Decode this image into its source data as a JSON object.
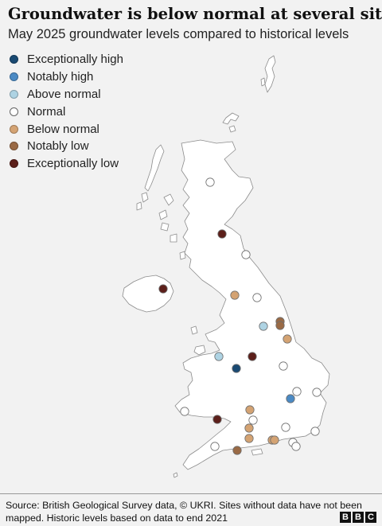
{
  "header": {
    "title": "Groundwater is below normal at several sites",
    "subtitle": "May 2025 groundwater levels compared to historical levels"
  },
  "legend": [
    {
      "label": "Exceptionally high",
      "color": "#1a4a73",
      "icon": "circle-marker"
    },
    {
      "label": "Notably high",
      "color": "#4b8ac4",
      "icon": "circle-marker"
    },
    {
      "label": "Above normal",
      "color": "#aed3e3",
      "icon": "circle-marker"
    },
    {
      "label": "Normal",
      "color": "#ffffff",
      "icon": "circle-marker"
    },
    {
      "label": "Below normal",
      "color": "#d4a373",
      "icon": "circle-marker"
    },
    {
      "label": "Notably low",
      "color": "#9a6a45",
      "icon": "circle-marker"
    },
    {
      "label": "Exceptionally low",
      "color": "#5c1f1a",
      "icon": "circle-marker"
    }
  ],
  "map": {
    "region": "United Kingdom",
    "land_color": "#ffffff",
    "border_color": "#8c8c8c",
    "sites": [
      {
        "level": "Normal"
      },
      {
        "level": "Exceptionally low"
      },
      {
        "level": "Normal"
      },
      {
        "level": "Exceptionally low"
      },
      {
        "level": "Below normal"
      },
      {
        "level": "Normal"
      },
      {
        "level": "Notably low"
      },
      {
        "level": "Notably low"
      },
      {
        "level": "Above normal"
      },
      {
        "level": "Below normal"
      },
      {
        "level": "Above normal"
      },
      {
        "level": "Exceptionally low"
      },
      {
        "level": "Exceptionally high"
      },
      {
        "level": "Normal"
      },
      {
        "level": "Normal"
      },
      {
        "level": "Normal"
      },
      {
        "level": "Notably high"
      },
      {
        "level": "Normal"
      },
      {
        "level": "Below normal"
      },
      {
        "level": "Exceptionally low"
      },
      {
        "level": "Normal"
      },
      {
        "level": "Below normal"
      },
      {
        "level": "Normal"
      },
      {
        "level": "Below normal"
      },
      {
        "level": "Normal"
      },
      {
        "level": "Below normal"
      },
      {
        "level": "Below normal"
      },
      {
        "level": "Normal"
      },
      {
        "level": "Normal"
      },
      {
        "level": "Normal"
      },
      {
        "level": "Notably low"
      }
    ]
  },
  "footer": {
    "source_line1": "Source: British Geological Survey data, © UKRI. Sites without data have not been",
    "source_line2": "mapped. Historic levels based on data to end 2021",
    "logo": [
      "B",
      "B",
      "C"
    ]
  }
}
